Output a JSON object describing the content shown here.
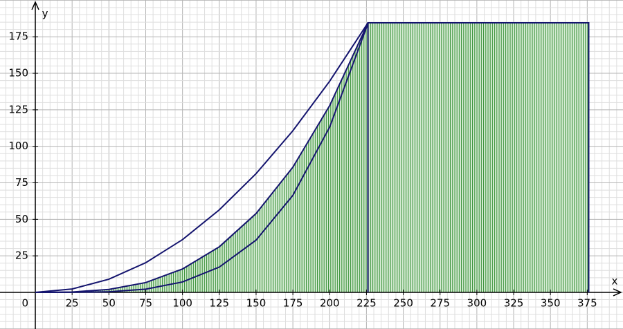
{
  "chart_data": {
    "type": "line",
    "x_label": "x",
    "y_label": "y",
    "origin_label": "0",
    "xlim": [
      -24,
      399.3
    ],
    "ylim": [
      -25.1,
      200.2
    ],
    "xticks": [
      25,
      50,
      75,
      100,
      125,
      150,
      175,
      200,
      225,
      250,
      275,
      300,
      325,
      350,
      375
    ],
    "yticks": [
      25,
      50,
      75,
      100,
      125,
      150,
      175
    ],
    "grid": true,
    "series": [
      {
        "color": "#14146e",
        "x": [
          0,
          25,
          50,
          75,
          100,
          125,
          150,
          175,
          200,
          225,
          226
        ],
        "values": [
          0,
          2.3,
          9.0,
          20.3,
          36.1,
          56.5,
          81.3,
          110.7,
          144.6,
          183.0,
          184.6
        ]
      },
      {
        "color": "#14146e",
        "x": [
          0,
          25,
          50,
          75,
          100,
          125,
          150,
          175,
          200,
          225,
          226
        ],
        "values": [
          0,
          0.25,
          2.0,
          6.7,
          16.0,
          31.2,
          54.0,
          85.7,
          127.9,
          182.2,
          184.6
        ]
      },
      {
        "color": "#14146e",
        "x": [
          0,
          25,
          50,
          75,
          100,
          125,
          150,
          175,
          200,
          225,
          226
        ],
        "values": [
          0,
          0.03,
          0.4,
          2.2,
          7.1,
          17.3,
          35.8,
          66.4,
          113.2,
          181.4,
          184.6
        ]
      }
    ],
    "plateau": {
      "color": "#14146e",
      "x": [
        226,
        376
      ],
      "values": [
        184.6,
        184.6
      ]
    },
    "shade_color": "#2e8b2e"
  }
}
